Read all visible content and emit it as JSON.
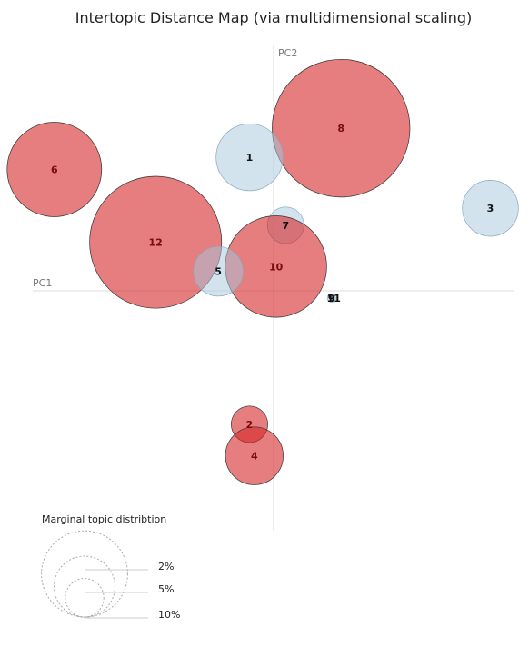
{
  "chart_data": {
    "type": "scatter",
    "title": "Intertopic Distance Map (via multidimensional scaling)",
    "xlabel": "PC1",
    "ylabel": "PC2",
    "xlim": [
      -1,
      1
    ],
    "ylim": [
      -1,
      1
    ],
    "grid": false,
    "colors": {
      "selected": "#d62728",
      "unselected": "#a6c8de",
      "selected_text": "#7a0c0c",
      "unselected_text": "#111111",
      "axis_line": "#dddddd",
      "legend_stroke": "#aaaaaa"
    },
    "topics": [
      {
        "label": "8",
        "x": 0.28,
        "y": 0.67,
        "size": 8.5,
        "highlighted": true
      },
      {
        "label": "1",
        "x": -0.1,
        "y": 0.55,
        "size": 2.0,
        "highlighted": false
      },
      {
        "label": "6",
        "x": -0.91,
        "y": 0.5,
        "size": 4.0,
        "highlighted": true
      },
      {
        "label": "3",
        "x": 0.9,
        "y": 0.34,
        "size": 1.4,
        "highlighted": false
      },
      {
        "label": "12",
        "x": -0.49,
        "y": 0.2,
        "size": 7.8,
        "highlighted": true
      },
      {
        "label": "7",
        "x": 0.05,
        "y": 0.27,
        "size": 0.6,
        "highlighted": false
      },
      {
        "label": "10",
        "x": 0.01,
        "y": 0.1,
        "size": 4.6,
        "highlighted": true
      },
      {
        "label": "5",
        "x": -0.23,
        "y": 0.08,
        "size": 1.1,
        "highlighted": false
      },
      {
        "label": "11",
        "x": 0.25,
        "y": -0.03,
        "size": 0.02,
        "highlighted": false
      },
      {
        "label": "9",
        "x": 0.24,
        "y": -0.03,
        "size": 0.03,
        "highlighted": false
      },
      {
        "label": "2",
        "x": -0.1,
        "y": -0.55,
        "size": 0.6,
        "highlighted": true
      },
      {
        "label": "4",
        "x": -0.08,
        "y": -0.68,
        "size": 1.5,
        "highlighted": true
      }
    ],
    "legend": {
      "title": "Marginal topic distribtion",
      "entries": [
        {
          "label": "2%",
          "size": 2
        },
        {
          "label": "5%",
          "size": 5
        },
        {
          "label": "10%",
          "size": 10
        }
      ],
      "placement": "bottom-left"
    }
  }
}
